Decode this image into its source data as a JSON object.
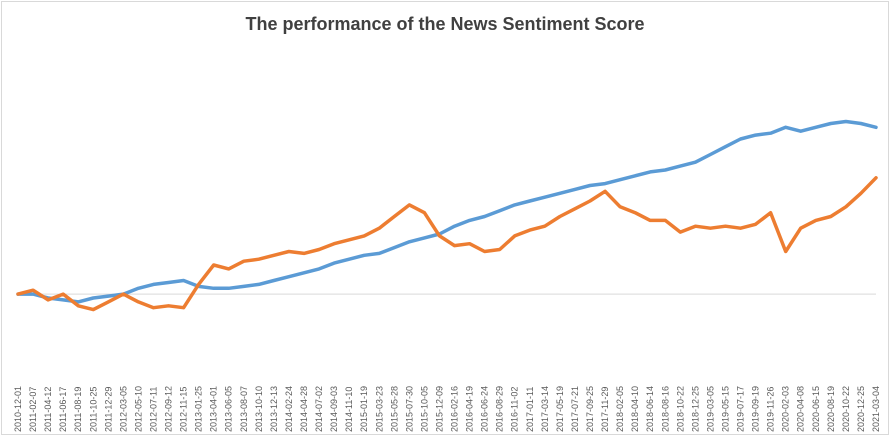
{
  "chart_data": {
    "type": "line",
    "title": "The performance of the News Sentiment Score",
    "xlabel": "",
    "ylabel": "",
    "grid": false,
    "legend": "none",
    "x_tick_labels": [
      "2010-12-01",
      "2011-02-07",
      "2011-04-12",
      "2011-06-17",
      "2011-08-19",
      "2011-10-25",
      "2011-12-29",
      "2012-03-05",
      "2012-05-10",
      "2012-07-11",
      "2012-09-12",
      "2012-11-15",
      "2013-01-25",
      "2013-04-01",
      "2013-06-05",
      "2013-08-07",
      "2013-10-10",
      "2013-12-13",
      "2014-02-24",
      "2014-04-28",
      "2014-07-02",
      "2014-09-03",
      "2014-11-10",
      "2015-01-19",
      "2015-03-23",
      "2015-05-28",
      "2015-07-30",
      "2015-10-05",
      "2015-12-09",
      "2016-02-16",
      "2016-04-19",
      "2016-06-24",
      "2016-08-29",
      "2016-11-02",
      "2017-01-11",
      "2017-03-14",
      "2017-05-19",
      "2017-07-21",
      "2017-09-25",
      "2017-11-29",
      "2018-02-05",
      "2018-04-10",
      "2018-06-14",
      "2018-08-16",
      "2018-10-22",
      "2018-12-25",
      "2019-03-05",
      "2019-05-15",
      "2019-07-17",
      "2019-09-19",
      "2019-11-26",
      "2020-02-03",
      "2020-04-08",
      "2020-06-15",
      "2020-08-19",
      "2020-10-22",
      "2020-12-25",
      "2021-03-04"
    ],
    "ylim": [
      -0.35,
      1.3
    ],
    "baseline": 0,
    "colors": {
      "series1": "#5b9bd5",
      "series2": "#ed7d31",
      "baseline": "#d9d9d9"
    },
    "series": [
      {
        "name": "",
        "color": "#5b9bd5",
        "values": [
          0.0,
          0.0,
          -0.02,
          -0.03,
          -0.04,
          -0.02,
          -0.01,
          0.0,
          0.03,
          0.05,
          0.06,
          0.07,
          0.04,
          0.03,
          0.03,
          0.04,
          0.05,
          0.07,
          0.09,
          0.11,
          0.13,
          0.16,
          0.18,
          0.2,
          0.21,
          0.24,
          0.27,
          0.29,
          0.31,
          0.35,
          0.38,
          0.4,
          0.43,
          0.46,
          0.48,
          0.5,
          0.52,
          0.54,
          0.56,
          0.57,
          0.59,
          0.61,
          0.63,
          0.64,
          0.66,
          0.68,
          0.72,
          0.76,
          0.8,
          0.82,
          0.83,
          0.86,
          0.84,
          0.86,
          0.88,
          0.89,
          0.88,
          0.86
        ]
      },
      {
        "name": "",
        "color": "#ed7d31",
        "values": [
          0.0,
          0.02,
          -0.03,
          0.0,
          -0.06,
          -0.08,
          -0.04,
          0.0,
          -0.04,
          -0.07,
          -0.06,
          -0.07,
          0.05,
          0.15,
          0.13,
          0.17,
          0.18,
          0.2,
          0.22,
          0.21,
          0.23,
          0.26,
          0.28,
          0.3,
          0.34,
          0.4,
          0.46,
          0.42,
          0.3,
          0.25,
          0.26,
          0.22,
          0.23,
          0.3,
          0.33,
          0.35,
          0.4,
          0.44,
          0.48,
          0.53,
          0.45,
          0.42,
          0.38,
          0.38,
          0.32,
          0.35,
          0.34,
          0.35,
          0.34,
          0.36,
          0.42,
          0.22,
          0.34,
          0.38,
          0.4,
          0.45,
          0.52,
          0.6
        ]
      }
    ]
  }
}
